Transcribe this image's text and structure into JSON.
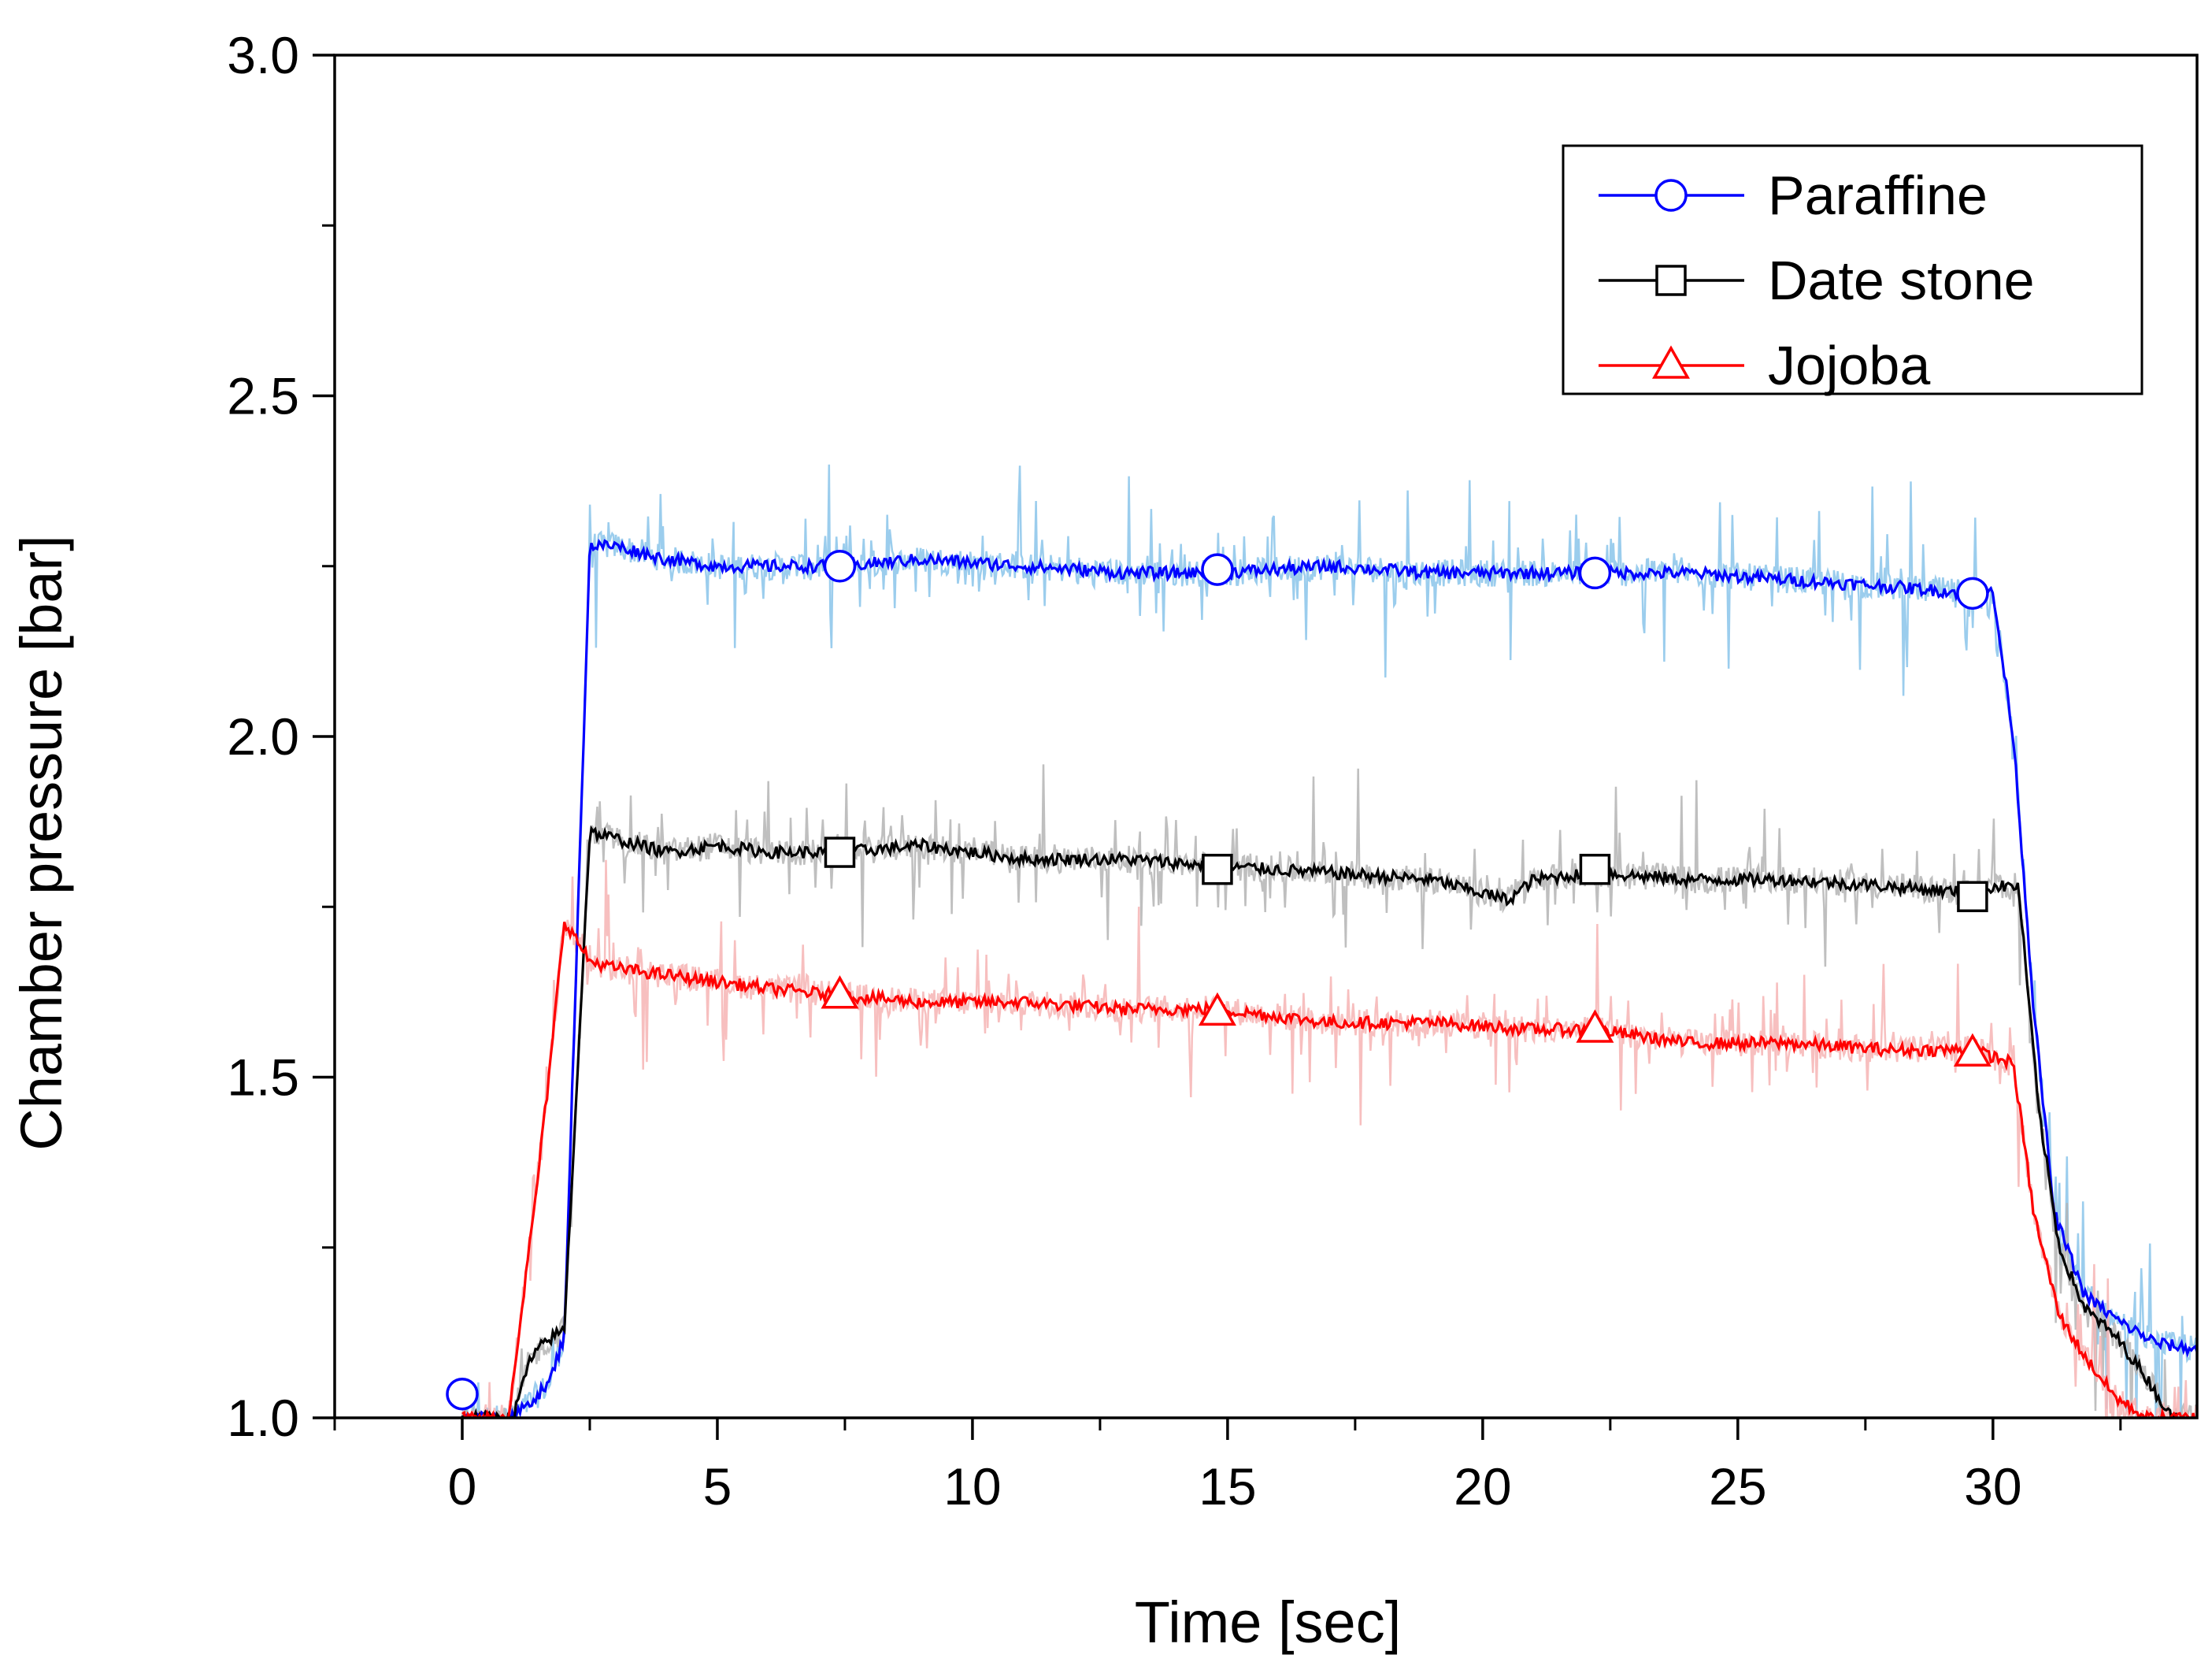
{
  "chart_data": {
    "type": "line",
    "title": "",
    "xlabel": "Time [sec]",
    "ylabel": "Chamber pressure [bar]",
    "xlim": [
      -2.5,
      34
    ],
    "ylim": [
      1.0,
      3.0
    ],
    "x_ticks": [
      0,
      5,
      10,
      15,
      20,
      25,
      30
    ],
    "x_tick_labels": [
      "0",
      "5",
      "10",
      "15",
      "20",
      "25",
      "30"
    ],
    "y_ticks": [
      1.0,
      1.5,
      2.0,
      2.5,
      3.0
    ],
    "y_tick_labels": [
      "1.0",
      "1.5",
      "2.0",
      "2.5",
      "3.0"
    ],
    "legend_position": "top-right",
    "series": [
      {
        "name": "Paraffine",
        "color": "#0000ff",
        "raw_color": "#8ac4ea",
        "marker": "circle",
        "x": [
          0,
          1.0,
          1.7,
          2.0,
          2.5,
          3.0,
          4,
          5,
          6,
          7.4,
          9,
          11,
          13,
          14.8,
          17,
          19,
          21,
          22.2,
          24,
          26,
          28,
          29.6,
          30.0,
          30.4,
          30.8,
          31.2,
          31.8,
          32.5,
          33.2,
          34
        ],
        "values": [
          1.0,
          1.0,
          1.05,
          1.12,
          2.28,
          2.28,
          2.26,
          2.25,
          2.25,
          2.25,
          2.26,
          2.25,
          2.24,
          2.24,
          2.25,
          2.24,
          2.24,
          2.24,
          2.24,
          2.23,
          2.22,
          2.21,
          2.21,
          2.0,
          1.6,
          1.3,
          1.18,
          1.14,
          1.11,
          1.1
        ],
        "marker_points": [
          [
            0,
            1.035
          ],
          [
            7.4,
            2.25
          ],
          [
            14.8,
            2.245
          ],
          [
            22.2,
            2.24
          ],
          [
            29.6,
            2.21
          ]
        ]
      },
      {
        "name": "Date stone",
        "color": "#000000",
        "raw_color": "#b4b4b4",
        "marker": "square",
        "x": [
          0,
          1.0,
          1.3,
          1.6,
          2.0,
          2.5,
          3.0,
          4,
          5,
          6,
          7.4,
          9,
          11,
          13,
          14.8,
          17,
          19,
          20.5,
          21,
          22.2,
          24,
          26,
          28,
          29.6,
          30.0,
          30.5,
          30.9,
          31.3,
          31.8,
          32.4,
          33.0,
          33.5,
          34
        ],
        "values": [
          1.0,
          1.0,
          1.08,
          1.11,
          1.13,
          1.86,
          1.85,
          1.83,
          1.84,
          1.83,
          1.83,
          1.84,
          1.82,
          1.82,
          1.81,
          1.8,
          1.79,
          1.76,
          1.79,
          1.8,
          1.79,
          1.79,
          1.78,
          1.77,
          1.78,
          1.78,
          1.45,
          1.25,
          1.16,
          1.12,
          1.06,
          1.0,
          1.0
        ],
        "marker_points": [
          [
            7.4,
            1.83
          ],
          [
            14.8,
            1.805
          ],
          [
            22.2,
            1.805
          ],
          [
            29.6,
            1.765
          ]
        ]
      },
      {
        "name": "Jojoba",
        "color": "#ff0000",
        "raw_color": "#f6b4b4",
        "marker": "triangle",
        "x": [
          0,
          0.9,
          1.4,
          1.7,
          2.0,
          2.5,
          3.0,
          4,
          5,
          6,
          7.4,
          9,
          11,
          13,
          14.8,
          17,
          19,
          21,
          22.2,
          24,
          26,
          28,
          29.6,
          30.0,
          30.4,
          30.8,
          31.3,
          31.8,
          32.4,
          33.0,
          34
        ],
        "values": [
          1.0,
          1.0,
          1.3,
          1.5,
          1.73,
          1.67,
          1.66,
          1.65,
          1.64,
          1.63,
          1.62,
          1.61,
          1.61,
          1.6,
          1.6,
          1.58,
          1.58,
          1.57,
          1.57,
          1.55,
          1.55,
          1.54,
          1.54,
          1.53,
          1.52,
          1.3,
          1.15,
          1.09,
          1.03,
          1.0,
          1.0
        ],
        "marker_points": [
          [
            7.4,
            1.62
          ],
          [
            14.8,
            1.595
          ],
          [
            22.2,
            1.57
          ],
          [
            29.6,
            1.535
          ]
        ]
      }
    ]
  }
}
